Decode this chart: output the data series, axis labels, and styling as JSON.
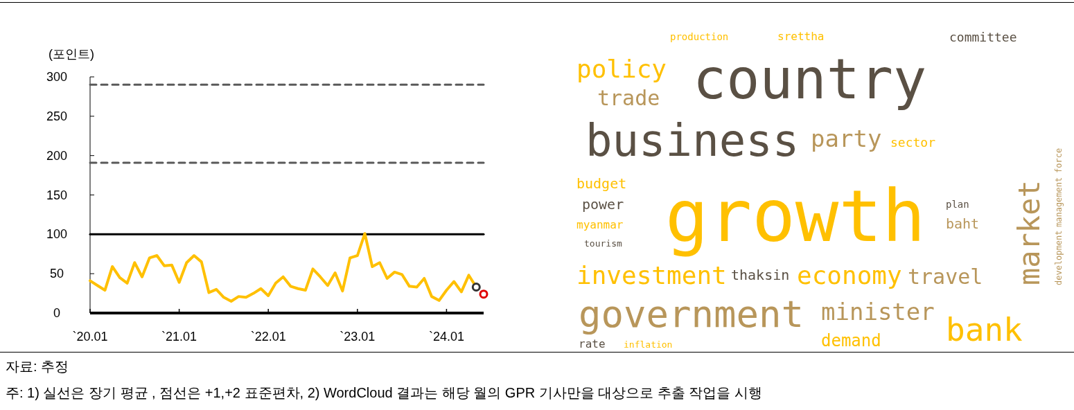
{
  "chart_data": [
    {
      "type": "line",
      "ylabel": "(포인트)",
      "xlim": [
        "2020-01",
        "2024-06"
      ],
      "ylim": [
        0,
        300
      ],
      "yticks": [
        0,
        50,
        100,
        150,
        200,
        250,
        300
      ],
      "xticks": [
        {
          "value": "2020-01",
          "label": "`20.01"
        },
        {
          "value": "2021-01",
          "label": "`21.01"
        },
        {
          "value": "2022-01",
          "label": "`22.01"
        },
        {
          "value": "2023-01",
          "label": "`23.01"
        },
        {
          "value": "2024-01",
          "label": "`24.01"
        }
      ],
      "series": [
        {
          "type": "line",
          "color": "#ffc000",
          "x": [
            "2020-01",
            "2020-02",
            "2020-03",
            "2020-04",
            "2020-05",
            "2020-06",
            "2020-07",
            "2020-08",
            "2020-09",
            "2020-10",
            "2020-11",
            "2020-12",
            "2021-01",
            "2021-02",
            "2021-03",
            "2021-04",
            "2021-05",
            "2021-06",
            "2021-07",
            "2021-08",
            "2021-09",
            "2021-10",
            "2021-11",
            "2021-12",
            "2022-01",
            "2022-02",
            "2022-03",
            "2022-04",
            "2022-05",
            "2022-06",
            "2022-07",
            "2022-08",
            "2022-09",
            "2022-10",
            "2022-11",
            "2022-12",
            "2023-01",
            "2023-02",
            "2023-03",
            "2023-04",
            "2023-05",
            "2023-06",
            "2023-07",
            "2023-08",
            "2023-09",
            "2023-10",
            "2023-11",
            "2023-12",
            "2024-01",
            "2024-02",
            "2024-03",
            "2024-04",
            "2024-05"
          ],
          "values": [
            41,
            35,
            29,
            59,
            45,
            38,
            64,
            46,
            70,
            73,
            60,
            61,
            39,
            64,
            73,
            65,
            26,
            30,
            20,
            15,
            21,
            20,
            25,
            31,
            22,
            38,
            46,
            34,
            31,
            29,
            56,
            46,
            35,
            51,
            28,
            70,
            73,
            101,
            59,
            64,
            44,
            52,
            49,
            34,
            33,
            44,
            21,
            16,
            29,
            40,
            27,
            48,
            33
          ]
        },
        {
          "type": "scatter",
          "color": "#333333",
          "marker": "circle",
          "x": [
            "2024-05"
          ],
          "values": [
            33
          ]
        },
        {
          "type": "scatter",
          "color": "#e00000",
          "marker": "circle",
          "x": [
            "2024-06"
          ],
          "values": [
            24
          ]
        }
      ],
      "ref_lines": [
        {
          "axis": "y",
          "value": 100,
          "color": "#000000",
          "line_style": "solid"
        },
        {
          "axis": "y",
          "value": 191,
          "color": "#595959",
          "line_style": "dashed"
        },
        {
          "axis": "y",
          "value": 290,
          "color": "#595959",
          "line_style": "dashed"
        }
      ],
      "annotations": [
        "자료: 추정",
        "주: 1) 실선은 장기 평균 , 점선은 +1,+2 표준편차, 2) WordCloud 결과는 해당 월의 GPR 기사만을 대상으로 추출 작업을 시행"
      ]
    },
    {
      "type": "other",
      "annotations": [
        "country",
        "business",
        "growth",
        "government",
        "economy",
        "market",
        "investment",
        "minister",
        "bank",
        "policy",
        "trade",
        "party",
        "travel",
        "demand",
        "budget",
        "power",
        "myanmar",
        "tourism",
        "thaksin",
        "plan",
        "baht",
        "rate",
        "inflation",
        "sector",
        "committee",
        "srettha",
        "production",
        "development",
        "management",
        "force"
      ],
      "colors": [
        "#5a5044",
        "#5a5044",
        "#ffc000",
        "#b8965a",
        "#ffc000",
        "#b8965a",
        "#ffc000",
        "#b8965a",
        "#ffc000",
        "#ffc000",
        "#b8965a",
        "#b8965a",
        "#b8965a",
        "#ffc000",
        "#ffc000",
        "#5a5044",
        "#ffc000",
        "#5a5044",
        "#5a5044",
        "#5a5044",
        "#b8965a",
        "#5a5044",
        "#ffc000",
        "#ffc000",
        "#5a5044",
        "#ffc000",
        "#ffc000",
        "#b8965a",
        "#b8965a",
        "#b8965a"
      ]
    }
  ]
}
